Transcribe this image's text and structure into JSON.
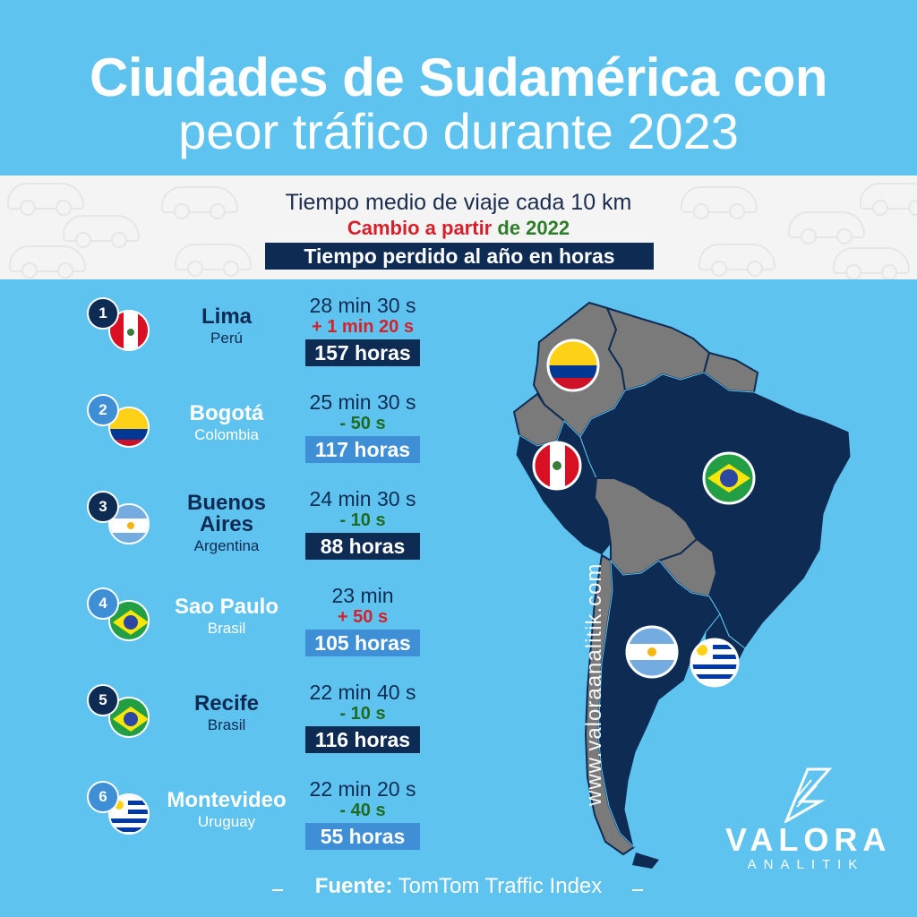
{
  "title": {
    "line1": "Ciudades de Sudamérica con",
    "line2": "peor tráfico durante 2023"
  },
  "legend": {
    "line1": "Tiempo medio de viaje cada 10 km",
    "change_red": "Cambio a partir",
    "change_green": "de 2022",
    "hours_label": "Tiempo perdido al año en horas"
  },
  "rows": [
    {
      "rank": "1",
      "city": "Lima",
      "country": "Perú",
      "time": "28 min 30 s",
      "change": "+ 1 min 20 s",
      "hours": "157 horas",
      "flag": "peru-flag",
      "change_color": "#d7202a"
    },
    {
      "rank": "2",
      "city": "Bogotá",
      "country": "Colombia",
      "time": "25 min 30 s",
      "change": "- 50 s",
      "hours": "117 horas",
      "flag": "colombia-flag",
      "change_color": "#1f6b22"
    },
    {
      "rank": "3",
      "city": "Buenos Aires",
      "country": "Argentina",
      "time": "24 min 30 s",
      "change": "- 10 s",
      "hours": "88 horas",
      "flag": "argentina-flag",
      "change_color": "#1f6b22"
    },
    {
      "rank": "4",
      "city": "Sao Paulo",
      "country": "Brasil",
      "time": "23 min",
      "change": "+ 50 s",
      "hours": "105 horas",
      "flag": "brazil-flag",
      "change_color": "#d7202a"
    },
    {
      "rank": "5",
      "city": "Recife",
      "country": "Brasil",
      "time": "22 min 40 s",
      "change": "- 10 s",
      "hours": "116 horas",
      "flag": "brazil-flag",
      "change_color": "#1f6b22"
    },
    {
      "rank": "6",
      "city": "Montevideo",
      "country": "Uruguay",
      "time": "22 min 20 s",
      "change": "- 40 s",
      "hours": "55 horas",
      "flag": "uruguay-flag",
      "change_color": "#1f6b22"
    }
  ],
  "watermark": "www.valoraanalitik.com",
  "logo": {
    "word": "VALORA",
    "sub": "ANALITIK"
  },
  "source": {
    "label": "Fuente:",
    "value": "TomTom Traffic Index"
  },
  "colors": {
    "background": "#5fc3ef",
    "navy": "#0e2b53",
    "accent_blue": "#3e8fd6",
    "red": "#d7202a",
    "green": "#1f6b22",
    "gray_country": "#7a7a7a"
  }
}
